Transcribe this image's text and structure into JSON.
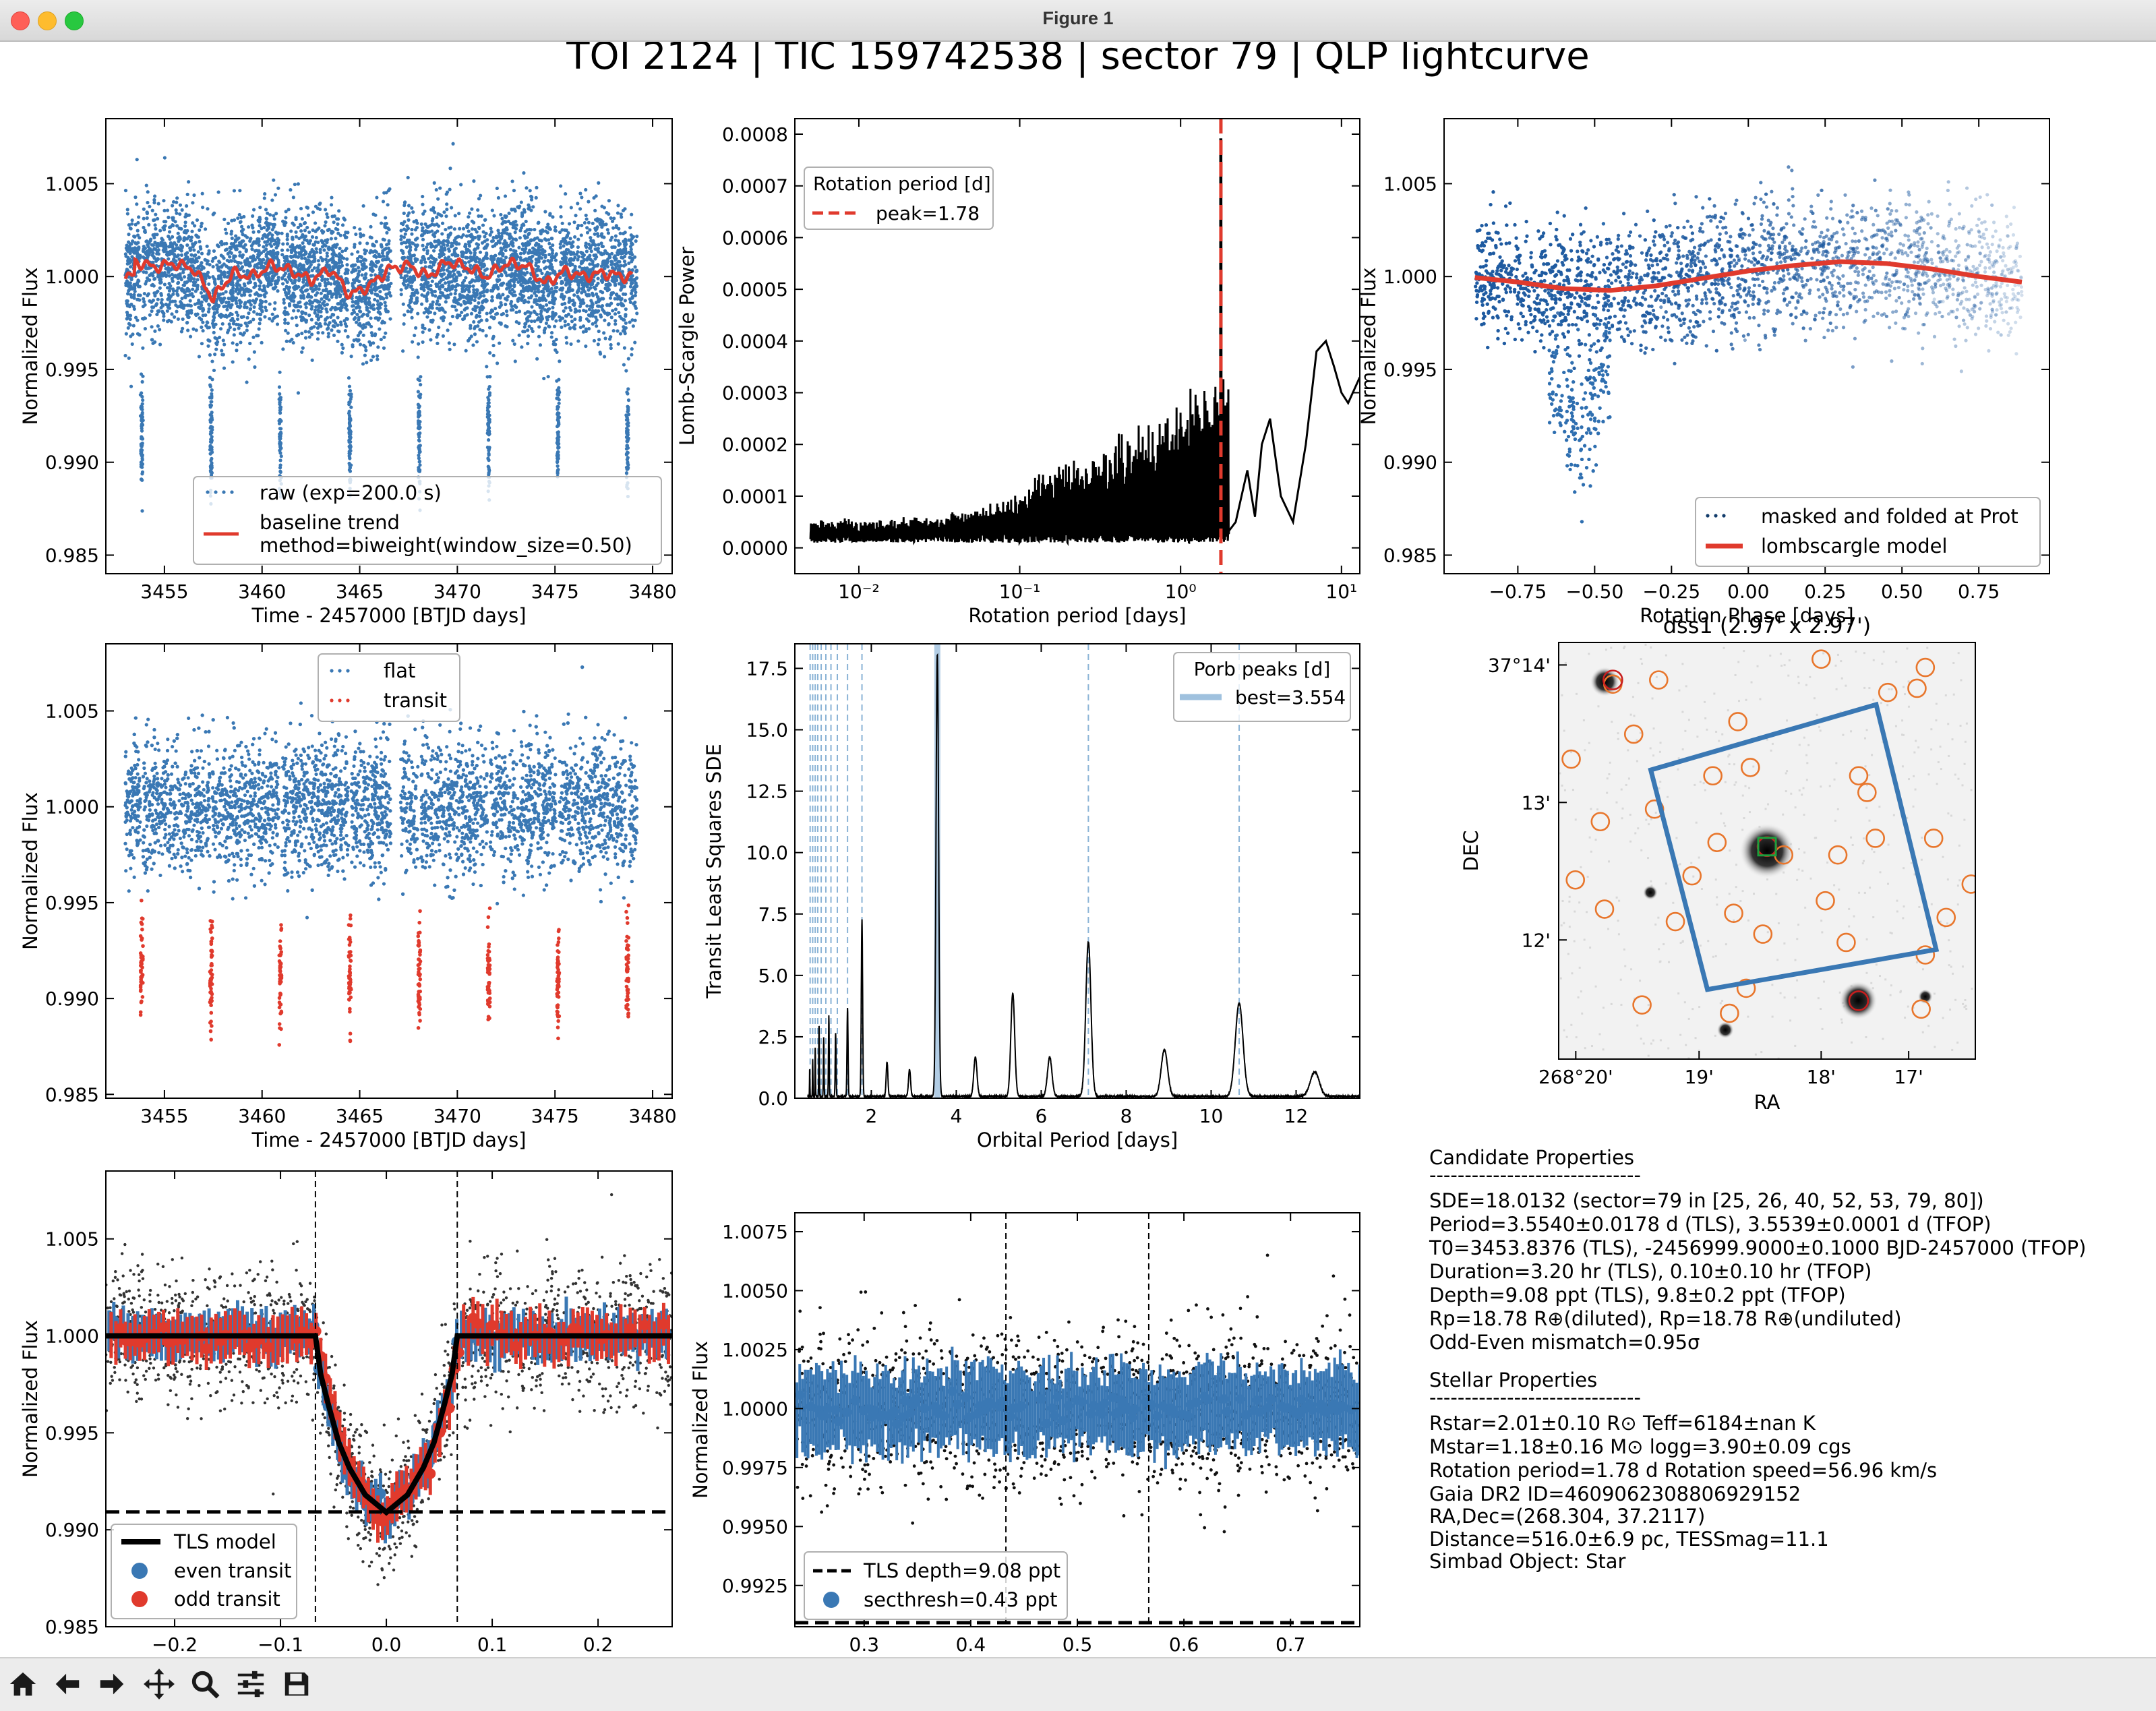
{
  "window": {
    "title": "Figure 1"
  },
  "figure": {
    "suptitle": "TOI 2124 | TIC 159742538 | sector 79 | QLP lightcurve",
    "colors": {
      "blue": "#3a78b4",
      "red": "#e03a2d",
      "orange": "#e8762c",
      "black": "#000000"
    }
  },
  "chart_data": [
    {
      "id": "raw_lc",
      "type": "scatter",
      "xlabel": "Time - 2457000 [BTJD days]",
      "ylabel": "Normalized Flux",
      "xlim": [
        3452,
        3481
      ],
      "ylim": [
        0.984,
        1.0085
      ],
      "xticks": [
        "3455",
        "3460",
        "3465",
        "3470",
        "3475",
        "3480"
      ],
      "yticks": [
        "0.985",
        "0.990",
        "0.995",
        "1.000",
        "1.005"
      ],
      "legend": {
        "position": "lower right",
        "entries": [
          "raw (exp=200.0 s)",
          "baseline trend",
          "method=biweight(window_size=0.50)"
        ]
      },
      "transit_times": [
        3453.84,
        3457.39,
        3460.94,
        3464.5,
        3468.05,
        3471.61,
        3475.16,
        3478.71
      ],
      "trend_points": [
        [
          3453.5,
          1.0008
        ],
        [
          3454.5,
          1.0005
        ],
        [
          3455.5,
          1.0007
        ],
        [
          3456.5,
          1.0004
        ],
        [
          3457.5,
          0.9988
        ],
        [
          3458.5,
          1.0002
        ],
        [
          3459.5,
          1.0
        ],
        [
          3460.5,
          1.0006
        ],
        [
          3461.5,
          1.0003
        ],
        [
          3462.5,
          0.9998
        ],
        [
          3463.5,
          1.0004
        ],
        [
          3464.5,
          0.999
        ],
        [
          3465.5,
          0.9995
        ],
        [
          3466.5,
          1.0004
        ],
        [
          3467.5,
          1.0006
        ],
        [
          3468.5,
          1.0
        ],
        [
          3469.5,
          1.0008
        ],
        [
          3470.5,
          1.0005
        ],
        [
          3471.5,
          1.0
        ],
        [
          3472.5,
          1.0007
        ],
        [
          3473.5,
          1.0006
        ],
        [
          3474.5,
          0.9996
        ],
        [
          3475.5,
          1.0003
        ],
        [
          3476.5,
          1.0
        ],
        [
          3477.5,
          1.0002
        ],
        [
          3478.5,
          1.0
        ],
        [
          3479.0,
          1.0
        ]
      ]
    },
    {
      "id": "ls_periodogram",
      "type": "line",
      "xlabel": "Rotation period [days]",
      "ylabel": "Lomb-Scargle Power",
      "xscale": "log",
      "xlim": [
        0.004,
        13
      ],
      "ylim": [
        -5e-05,
        0.00083
      ],
      "xticks": [
        "10⁻²",
        "10⁻¹",
        "10⁰",
        "10¹"
      ],
      "yticks": [
        "0.0000",
        "0.0001",
        "0.0002",
        "0.0003",
        "0.0004",
        "0.0005",
        "0.0006",
        "0.0007",
        "0.0008"
      ],
      "legend": {
        "position": "upper left",
        "title": "Rotation period [d]",
        "entries": [
          "peak=1.78"
        ]
      },
      "peak": 1.78,
      "long_period_curve": [
        [
          2.2,
          5e-05
        ],
        [
          2.6,
          0.00015
        ],
        [
          2.9,
          6e-05
        ],
        [
          3.2,
          0.0002
        ],
        [
          3.6,
          0.00025
        ],
        [
          4.2,
          0.0001
        ],
        [
          5.0,
          5e-05
        ],
        [
          6.0,
          0.0002
        ],
        [
          7.0,
          0.00038
        ],
        [
          8.0,
          0.0004
        ],
        [
          9.0,
          0.00035
        ],
        [
          10.0,
          0.0003
        ],
        [
          11.0,
          0.00028
        ],
        [
          13.0,
          0.00033
        ]
      ]
    },
    {
      "id": "rot_fold",
      "type": "scatter",
      "xlabel": "Rotation Phase [days]",
      "ylabel": "Normalized Flux",
      "xlim": [
        -0.99,
        0.98
      ],
      "ylim": [
        0.984,
        1.0085
      ],
      "xticks": [
        "−0.75",
        "−0.50",
        "−0.25",
        "0.00",
        "0.25",
        "0.50",
        "0.75"
      ],
      "yticks": [
        "0.985",
        "0.990",
        "0.995",
        "1.000",
        "1.005"
      ],
      "legend": {
        "position": "lower right",
        "entries": [
          "masked and folded at Prot",
          "lombscargle model"
        ]
      },
      "model": [
        [
          -0.89,
          0.99995
        ],
        [
          -0.75,
          0.9997
        ],
        [
          -0.6,
          0.99935
        ],
        [
          -0.45,
          0.99925
        ],
        [
          -0.3,
          0.9995
        ],
        [
          -0.15,
          0.9999
        ],
        [
          0.0,
          1.0003
        ],
        [
          0.15,
          1.0006
        ],
        [
          0.3,
          1.0008
        ],
        [
          0.45,
          1.0007
        ],
        [
          0.6,
          1.0004
        ],
        [
          0.75,
          1.0
        ],
        [
          0.89,
          0.9997
        ]
      ]
    },
    {
      "id": "flat_lc",
      "type": "scatter",
      "xlabel": "Time - 2457000 [BTJD days]",
      "ylabel": "Normalized Flux",
      "xlim": [
        3452,
        3481
      ],
      "ylim": [
        0.9848,
        1.0085
      ],
      "xticks": [
        "3455",
        "3460",
        "3465",
        "3470",
        "3475",
        "3480"
      ],
      "yticks": [
        "0.985",
        "0.990",
        "0.995",
        "1.000",
        "1.005"
      ],
      "legend": {
        "position": "upper center",
        "entries": [
          "flat",
          "transit"
        ]
      }
    },
    {
      "id": "tls_periodogram",
      "type": "line",
      "xlabel": "Orbital Period [days]",
      "ylabel": "Transit Least Squares SDE",
      "xlim": [
        0.2,
        13.5
      ],
      "ylim": [
        0,
        18.5
      ],
      "xticks": [
        "2",
        "4",
        "6",
        "8",
        "10",
        "12"
      ],
      "yticks": [
        "0.0",
        "2.5",
        "5.0",
        "7.5",
        "10.0",
        "12.5",
        "15.0",
        "17.5"
      ],
      "legend": {
        "position": "upper right",
        "title": "Porb peaks [d]",
        "entries": [
          "best=3.554"
        ]
      },
      "best": 3.554,
      "peaks": [
        [
          0.55,
          1.2
        ],
        [
          0.62,
          1.5
        ],
        [
          0.68,
          2.0
        ],
        [
          0.77,
          3.0
        ],
        [
          0.88,
          2.4
        ],
        [
          1.0,
          3.3
        ],
        [
          1.16,
          2.6
        ],
        [
          1.44,
          3.6
        ],
        [
          1.78,
          7.2
        ],
        [
          2.37,
          1.4
        ],
        [
          2.9,
          1.1
        ],
        [
          3.554,
          18.0
        ],
        [
          4.45,
          1.6
        ],
        [
          5.33,
          4.2
        ],
        [
          6.2,
          1.6
        ],
        [
          7.11,
          6.3
        ],
        [
          8.9,
          1.9
        ],
        [
          10.66,
          3.8
        ],
        [
          12.44,
          1.0
        ]
      ],
      "alias_lines": [
        0.56,
        0.62,
        0.68,
        0.74,
        0.82,
        0.93,
        1.05,
        1.2,
        1.44,
        1.78,
        7.11,
        10.66
      ]
    },
    {
      "id": "dss_image",
      "type": "image",
      "title": "dss1 (2.97' x 2.97')",
      "xlabel": "RA",
      "ylabel": "DEC",
      "xticks": [
        "268°20'",
        "19'",
        "18'",
        "17'"
      ],
      "yticks": [
        "37°14'",
        "13'",
        "12'"
      ],
      "stars": [
        [
          0.111,
          0.094
        ],
        [
          0.5,
          0.5
        ],
        [
          0.719,
          0.859
        ],
        [
          0.4,
          0.93
        ],
        [
          0.22,
          0.6
        ],
        [
          0.88,
          0.85
        ]
      ],
      "orange_circles": [
        [
          0.13,
          0.1
        ],
        [
          0.24,
          0.09
        ],
        [
          0.63,
          0.04
        ],
        [
          0.88,
          0.06
        ],
        [
          0.86,
          0.11
        ],
        [
          0.18,
          0.22
        ],
        [
          0.43,
          0.19
        ],
        [
          0.03,
          0.28
        ],
        [
          0.37,
          0.32
        ],
        [
          0.46,
          0.3
        ],
        [
          0.72,
          0.32
        ],
        [
          0.74,
          0.36
        ],
        [
          0.23,
          0.4
        ],
        [
          0.1,
          0.43
        ],
        [
          0.38,
          0.48
        ],
        [
          0.54,
          0.51
        ],
        [
          0.67,
          0.51
        ],
        [
          0.76,
          0.47
        ],
        [
          0.9,
          0.47
        ],
        [
          0.32,
          0.56
        ],
        [
          0.04,
          0.57
        ],
        [
          0.64,
          0.62
        ],
        [
          0.42,
          0.65
        ],
        [
          0.11,
          0.64
        ],
        [
          0.28,
          0.67
        ],
        [
          0.49,
          0.7
        ],
        [
          0.69,
          0.72
        ],
        [
          0.88,
          0.75
        ],
        [
          0.93,
          0.66
        ],
        [
          0.45,
          0.83
        ],
        [
          0.2,
          0.87
        ],
        [
          0.41,
          0.89
        ],
        [
          0.87,
          0.88
        ],
        [
          0.79,
          0.12
        ],
        [
          0.99,
          0.58
        ]
      ],
      "red_circles": [
        [
          0.13,
          0.09
        ],
        [
          0.5,
          0.49
        ],
        [
          0.72,
          0.86
        ]
      ],
      "target_box": [
        [
          0.221,
          0.306
        ],
        [
          0.762,
          0.149
        ],
        [
          0.906,
          0.737
        ],
        [
          0.357,
          0.833
        ]
      ]
    },
    {
      "id": "phase_fold",
      "type": "scatter",
      "xlabel": "Orbital Phase",
      "ylabel": "Normalized Flux",
      "xlim": [
        -0.265,
        0.27
      ],
      "ylim": [
        0.985,
        1.0085
      ],
      "xticks": [
        "−0.2",
        "−0.1",
        "0.0",
        "0.1",
        "0.2"
      ],
      "yticks": [
        "0.985",
        "0.990",
        "0.995",
        "1.000",
        "1.005"
      ],
      "legend": {
        "position": "lower left",
        "entries": [
          "TLS model",
          "even transit",
          "odd transit"
        ]
      },
      "depth_line": 0.99092,
      "window": [
        -0.067,
        0.067
      ],
      "model": [
        [
          -0.265,
          1.0
        ],
        [
          -0.067,
          1.0
        ],
        [
          -0.062,
          0.998
        ],
        [
          -0.055,
          0.9965
        ],
        [
          -0.045,
          0.9945
        ],
        [
          -0.035,
          0.9932
        ],
        [
          -0.02,
          0.9918
        ],
        [
          0.0,
          0.9909
        ],
        [
          0.02,
          0.9918
        ],
        [
          0.035,
          0.9932
        ],
        [
          0.045,
          0.9945
        ],
        [
          0.055,
          0.9965
        ],
        [
          0.062,
          0.998
        ],
        [
          0.067,
          1.0
        ],
        [
          0.27,
          1.0
        ]
      ]
    },
    {
      "id": "secondary",
      "type": "scatter",
      "xlabel": "Orbital Phase",
      "ylabel": "Normalized Flux",
      "xlim": [
        0.235,
        0.765
      ],
      "ylim": [
        0.99075,
        1.0083
      ],
      "xticks": [
        "0.3",
        "0.4",
        "0.5",
        "0.6",
        "0.7"
      ],
      "yticks": [
        "0.9925",
        "0.9950",
        "0.9975",
        "1.0000",
        "1.0025",
        "1.0050",
        "1.0075"
      ],
      "legend": {
        "position": "lower left",
        "entries": [
          "TLS depth=9.08 ppt",
          "secthresh=0.43 ppt"
        ]
      },
      "depth_line": 0.99092,
      "window": [
        0.433,
        0.567
      ]
    }
  ],
  "candidate": {
    "heading": "Candidate Properties",
    "rule": "------------------------------",
    "lines": [
      "SDE=18.0132 (sector=79 in [25, 26, 40, 52, 53, 79, 80])",
      "Period=3.5540±0.0178 d (TLS), 3.5539±0.0001 d (TFOP)",
      "T0=3453.8376 (TLS), -2456999.9000±0.1000 BJD-2457000 (TFOP)",
      "Duration=3.20 hr (TLS), 0.10±0.10 hr (TFOP)",
      "Depth=9.08 ppt (TLS), 9.8±0.2 ppt (TFOP)",
      "Rp=18.78 R⊕(diluted), Rp=18.78 R⊕(undiluted)",
      "Odd-Even mismatch=0.95σ"
    ]
  },
  "stellar": {
    "heading": "Stellar Properties",
    "rule": "------------------------------",
    "lines": [
      "Rstar=2.01±0.10 R⊙     Teff=6184±nan K",
      "Mstar=1.18±0.16 M⊙     logg=3.90±0.09 cgs",
      "Rotation period=1.78 d     Rotation speed=56.96 km/s",
      "Gaia DR2 ID=4609062308806929152",
      "RA,Dec=(268.304, 37.2117)",
      "Distance=516.0±6.9 pc, TESSmag=11.1",
      "Simbad Object: Star"
    ]
  },
  "toolbar": {
    "buttons": [
      {
        "name": "home-icon",
        "label": "Home"
      },
      {
        "name": "back-icon",
        "label": "Back"
      },
      {
        "name": "forward-icon",
        "label": "Forward"
      },
      {
        "name": "pan-icon",
        "label": "Pan"
      },
      {
        "name": "zoom-icon",
        "label": "Zoom"
      },
      {
        "name": "configure-icon",
        "label": "Configure subplots"
      },
      {
        "name": "save-icon",
        "label": "Save"
      }
    ]
  }
}
